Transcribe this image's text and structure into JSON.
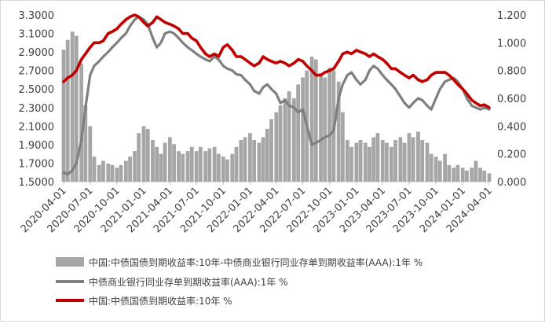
{
  "chart_data": {
    "type": "bar+line",
    "colors": {
      "spread": "#a6a6a6",
      "ncd": "#7f7f7f",
      "cgb10y": "#c00000"
    },
    "x_ticks": [
      "2020-04-01",
      "2020-07-01",
      "2020-10-01",
      "2021-01-01",
      "2021-04-01",
      "2021-07-01",
      "2021-10-01",
      "2022-01-01",
      "2022-04-01",
      "2022-07-01",
      "2022-10-01",
      "2023-01-01",
      "2023-04-01",
      "2023-07-01",
      "2023-10-01",
      "2024-01-01",
      "2024-04-01"
    ],
    "left_axis": {
      "ticks": [
        "3.3000",
        "3.1000",
        "2.9000",
        "2.7000",
        "2.5000",
        "2.3000",
        "2.1000",
        "1.9000",
        "1.7000",
        "1.5000"
      ],
      "ylim": [
        1.5,
        3.3
      ]
    },
    "right_axis": {
      "ticks": [
        "1.200",
        "1.000",
        "0.800",
        "0.600",
        "0.400",
        "0.200",
        "0.000"
      ],
      "ylim": [
        0.0,
        1.2
      ]
    },
    "series": [
      {
        "name": "中国:中债国债到期收益率:10年-中债商业银行同业存单到期收益率(AAA):1年 %",
        "type": "bar",
        "axis": "right",
        "dates": [
          "2020-04-01",
          "2020-04-15",
          "2020-05-01",
          "2020-05-15",
          "2020-06-01",
          "2020-06-15",
          "2020-07-01",
          "2020-07-15",
          "2020-08-01",
          "2020-08-15",
          "2020-09-01",
          "2020-09-15",
          "2020-10-01",
          "2020-10-15",
          "2020-11-01",
          "2020-11-15",
          "2020-12-01",
          "2020-12-15",
          "2021-01-01",
          "2021-01-15",
          "2021-02-01",
          "2021-02-15",
          "2021-03-01",
          "2021-03-15",
          "2021-04-01",
          "2021-04-15",
          "2021-05-01",
          "2021-05-15",
          "2021-06-01",
          "2021-06-15",
          "2021-07-01",
          "2021-07-15",
          "2021-08-01",
          "2021-08-15",
          "2021-09-01",
          "2021-09-15",
          "2021-10-01",
          "2021-10-15",
          "2021-11-01",
          "2021-11-15",
          "2021-12-01",
          "2021-12-15",
          "2022-01-01",
          "2022-01-15",
          "2022-02-01",
          "2022-02-15",
          "2022-03-01",
          "2022-03-15",
          "2022-04-01",
          "2022-04-15",
          "2022-05-01",
          "2022-05-15",
          "2022-06-01",
          "2022-06-15",
          "2022-07-01",
          "2022-07-15",
          "2022-08-01",
          "2022-08-15",
          "2022-09-01",
          "2022-09-15",
          "2022-10-01",
          "2022-10-15",
          "2022-11-01",
          "2022-11-15",
          "2022-12-01",
          "2022-12-15",
          "2023-01-01",
          "2023-01-15",
          "2023-02-01",
          "2023-02-15",
          "2023-03-01",
          "2023-03-15",
          "2023-04-01",
          "2023-04-15",
          "2023-05-01",
          "2023-05-15",
          "2023-06-01",
          "2023-06-15",
          "2023-07-01",
          "2023-07-15",
          "2023-08-01",
          "2023-08-15",
          "2023-09-01",
          "2023-09-15",
          "2023-10-01",
          "2023-10-15",
          "2023-11-01",
          "2023-11-15",
          "2023-12-01",
          "2023-12-15",
          "2024-01-01",
          "2024-01-15",
          "2024-02-01",
          "2024-02-15",
          "2024-03-01",
          "2024-03-15",
          "2024-04-01"
        ],
        "values": [
          0.95,
          1.02,
          1.08,
          1.05,
          0.85,
          0.55,
          0.4,
          0.18,
          0.12,
          0.15,
          0.13,
          0.12,
          0.1,
          0.12,
          0.15,
          0.18,
          0.22,
          0.35,
          0.4,
          0.38,
          0.3,
          0.25,
          0.2,
          0.28,
          0.32,
          0.27,
          0.22,
          0.2,
          0.22,
          0.25,
          0.22,
          0.25,
          0.22,
          0.24,
          0.25,
          0.2,
          0.18,
          0.16,
          0.2,
          0.25,
          0.3,
          0.32,
          0.35,
          0.3,
          0.28,
          0.32,
          0.38,
          0.45,
          0.5,
          0.55,
          0.6,
          0.65,
          0.6,
          0.7,
          0.75,
          0.8,
          0.9,
          0.88,
          0.78,
          0.75,
          0.82,
          0.8,
          0.72,
          0.5,
          0.3,
          0.25,
          0.28,
          0.3,
          0.28,
          0.25,
          0.32,
          0.35,
          0.3,
          0.28,
          0.25,
          0.3,
          0.32,
          0.28,
          0.35,
          0.32,
          0.36,
          0.3,
          0.28,
          0.2,
          0.18,
          0.15,
          0.2,
          0.12,
          0.1,
          0.12,
          0.1,
          0.08,
          0.1,
          0.15,
          0.1,
          0.08,
          0.06
        ]
      },
      {
        "name": "中债商业银行同业存单到期收益率(AAA):1年 %",
        "type": "line",
        "axis": "left",
        "dates": [
          "2020-04-01",
          "2020-04-15",
          "2020-05-01",
          "2020-05-15",
          "2020-06-01",
          "2020-06-15",
          "2020-07-01",
          "2020-07-15",
          "2020-08-01",
          "2020-08-15",
          "2020-09-01",
          "2020-09-15",
          "2020-10-01",
          "2020-10-15",
          "2020-11-01",
          "2020-11-15",
          "2020-12-01",
          "2020-12-15",
          "2021-01-01",
          "2021-01-15",
          "2021-02-01",
          "2021-02-15",
          "2021-03-01",
          "2021-03-15",
          "2021-04-01",
          "2021-04-15",
          "2021-05-01",
          "2021-05-15",
          "2021-06-01",
          "2021-06-15",
          "2021-07-01",
          "2021-07-15",
          "2021-08-01",
          "2021-08-15",
          "2021-09-01",
          "2021-09-15",
          "2021-10-01",
          "2021-10-15",
          "2021-11-01",
          "2021-11-15",
          "2021-12-01",
          "2021-12-15",
          "2022-01-01",
          "2022-01-15",
          "2022-02-01",
          "2022-02-15",
          "2022-03-01",
          "2022-03-15",
          "2022-04-01",
          "2022-04-15",
          "2022-05-01",
          "2022-05-15",
          "2022-06-01",
          "2022-06-15",
          "2022-07-01",
          "2022-07-15",
          "2022-08-01",
          "2022-08-15",
          "2022-09-01",
          "2022-09-15",
          "2022-10-01",
          "2022-10-15",
          "2022-11-01",
          "2022-11-15",
          "2022-12-01",
          "2022-12-15",
          "2023-01-01",
          "2023-01-15",
          "2023-02-01",
          "2023-02-15",
          "2023-03-01",
          "2023-03-15",
          "2023-04-01",
          "2023-04-15",
          "2023-05-01",
          "2023-05-15",
          "2023-06-01",
          "2023-06-15",
          "2023-07-01",
          "2023-07-15",
          "2023-08-01",
          "2023-08-15",
          "2023-09-01",
          "2023-09-15",
          "2023-10-01",
          "2023-10-15",
          "2023-11-01",
          "2023-11-15",
          "2023-12-01",
          "2023-12-15",
          "2024-01-01",
          "2024-01-15",
          "2024-02-01",
          "2024-02-15",
          "2024-03-01",
          "2024-03-15",
          "2024-04-01"
        ],
        "values": [
          1.6,
          1.58,
          1.62,
          1.7,
          1.95,
          2.3,
          2.65,
          2.75,
          2.8,
          2.85,
          2.9,
          2.95,
          3.0,
          3.05,
          3.1,
          3.18,
          3.25,
          3.28,
          3.25,
          3.2,
          3.05,
          2.95,
          3.0,
          3.1,
          3.12,
          3.1,
          3.05,
          3.0,
          2.95,
          2.92,
          2.88,
          2.85,
          2.82,
          2.8,
          2.85,
          2.82,
          2.75,
          2.72,
          2.7,
          2.66,
          2.65,
          2.6,
          2.55,
          2.48,
          2.45,
          2.52,
          2.55,
          2.5,
          2.45,
          2.35,
          2.38,
          2.32,
          2.3,
          2.25,
          2.28,
          2.1,
          1.9,
          1.92,
          1.95,
          1.98,
          2.0,
          2.05,
          2.4,
          2.55,
          2.65,
          2.68,
          2.6,
          2.55,
          2.6,
          2.7,
          2.75,
          2.72,
          2.65,
          2.6,
          2.55,
          2.5,
          2.42,
          2.35,
          2.3,
          2.35,
          2.4,
          2.38,
          2.32,
          2.28,
          2.4,
          2.5,
          2.58,
          2.6,
          2.62,
          2.58,
          2.5,
          2.4,
          2.32,
          2.3,
          2.28,
          2.3,
          2.28
        ]
      },
      {
        "name": "中国:中债国债到期收益率:10年 %",
        "type": "line",
        "axis": "left",
        "dates": [
          "2020-04-01",
          "2020-04-15",
          "2020-05-01",
          "2020-05-15",
          "2020-06-01",
          "2020-06-15",
          "2020-07-01",
          "2020-07-15",
          "2020-08-01",
          "2020-08-15",
          "2020-09-01",
          "2020-09-15",
          "2020-10-01",
          "2020-10-15",
          "2020-11-01",
          "2020-11-15",
          "2020-12-01",
          "2020-12-15",
          "2021-01-01",
          "2021-01-15",
          "2021-02-01",
          "2021-02-15",
          "2021-03-01",
          "2021-03-15",
          "2021-04-01",
          "2021-04-15",
          "2021-05-01",
          "2021-05-15",
          "2021-06-01",
          "2021-06-15",
          "2021-07-01",
          "2021-07-15",
          "2021-08-01",
          "2021-08-15",
          "2021-09-01",
          "2021-09-15",
          "2021-10-01",
          "2021-10-15",
          "2021-11-01",
          "2021-11-15",
          "2021-12-01",
          "2021-12-15",
          "2022-01-01",
          "2022-01-15",
          "2022-02-01",
          "2022-02-15",
          "2022-03-01",
          "2022-03-15",
          "2022-04-01",
          "2022-04-15",
          "2022-05-01",
          "2022-05-15",
          "2022-06-01",
          "2022-06-15",
          "2022-07-01",
          "2022-07-15",
          "2022-08-01",
          "2022-08-15",
          "2022-09-01",
          "2022-09-15",
          "2022-10-01",
          "2022-10-15",
          "2022-11-01",
          "2022-11-15",
          "2022-12-01",
          "2022-12-15",
          "2023-01-01",
          "2023-01-15",
          "2023-02-01",
          "2023-02-15",
          "2023-03-01",
          "2023-03-15",
          "2023-04-01",
          "2023-04-15",
          "2023-05-01",
          "2023-05-15",
          "2023-06-01",
          "2023-06-15",
          "2023-07-01",
          "2023-07-15",
          "2023-08-01",
          "2023-08-15",
          "2023-09-01",
          "2023-09-15",
          "2023-10-01",
          "2023-10-15",
          "2023-11-01",
          "2023-11-15",
          "2023-12-01",
          "2023-12-15",
          "2024-01-01",
          "2024-01-15",
          "2024-02-01",
          "2024-02-15",
          "2024-03-01",
          "2024-03-15",
          "2024-04-01"
        ],
        "values": [
          2.58,
          2.62,
          2.65,
          2.7,
          2.82,
          2.88,
          2.95,
          3.0,
          3.0,
          3.02,
          3.1,
          3.12,
          3.15,
          3.2,
          3.25,
          3.28,
          3.3,
          3.28,
          3.22,
          3.18,
          3.22,
          3.28,
          3.25,
          3.22,
          3.2,
          3.18,
          3.15,
          3.1,
          3.1,
          3.05,
          3.02,
          2.95,
          2.88,
          2.85,
          2.88,
          2.85,
          2.95,
          2.98,
          2.92,
          2.85,
          2.85,
          2.82,
          2.78,
          2.75,
          2.78,
          2.85,
          2.82,
          2.8,
          2.78,
          2.8,
          2.78,
          2.75,
          2.78,
          2.82,
          2.8,
          2.75,
          2.7,
          2.65,
          2.65,
          2.68,
          2.7,
          2.72,
          2.8,
          2.88,
          2.9,
          2.88,
          2.92,
          2.9,
          2.88,
          2.85,
          2.88,
          2.85,
          2.82,
          2.78,
          2.72,
          2.72,
          2.68,
          2.65,
          2.62,
          2.65,
          2.6,
          2.58,
          2.6,
          2.65,
          2.68,
          2.68,
          2.68,
          2.65,
          2.6,
          2.55,
          2.5,
          2.45,
          2.38,
          2.35,
          2.32,
          2.33,
          2.3
        ]
      }
    ]
  }
}
